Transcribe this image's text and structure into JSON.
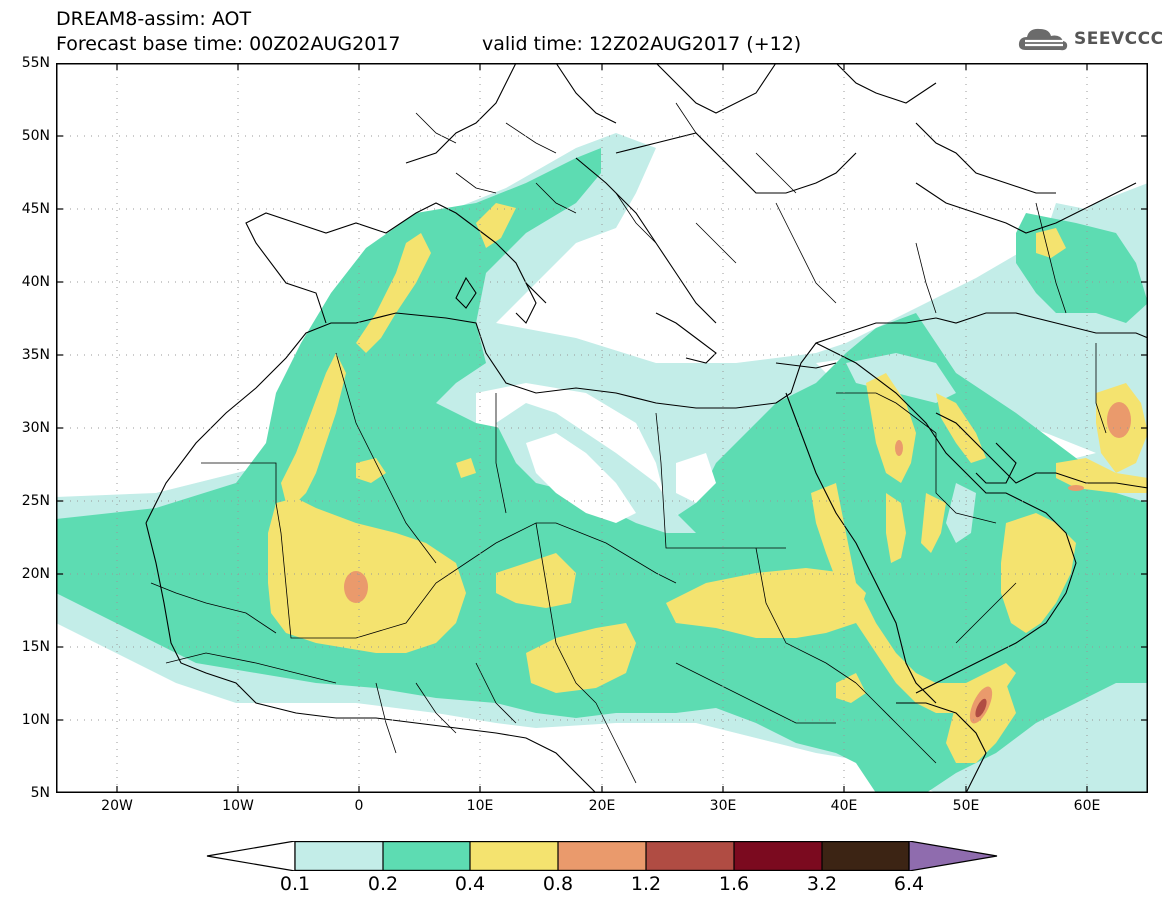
{
  "header": {
    "line1": "DREAM8-assim: AOT",
    "line2_left": "Forecast base time: 00Z02AUG2017",
    "line2_right": "valid time: 12Z02AUG2017 (+12)"
  },
  "logo": {
    "text": "SEEVCCC",
    "icon": "cloud-logo-icon"
  },
  "axes": {
    "lat_labels": [
      "55N",
      "50N",
      "45N",
      "40N",
      "35N",
      "30N",
      "25N",
      "20N",
      "15N",
      "10N",
      "5N"
    ],
    "lon_labels": [
      "20W",
      "10W",
      "0",
      "10E",
      "20E",
      "30E",
      "40E",
      "50E",
      "60E"
    ]
  },
  "colorbar": {
    "labels": [
      "0.1",
      "0.2",
      "0.4",
      "0.8",
      "1.2",
      "1.6",
      "3.2",
      "6.4"
    ],
    "colors": [
      "#ffffff",
      "#c3ede8",
      "#5ddcb2",
      "#f4e36f",
      "#ea9a6c",
      "#b04c43",
      "#7b0a1f",
      "#3c2414",
      "#8f6cae"
    ]
  }
}
